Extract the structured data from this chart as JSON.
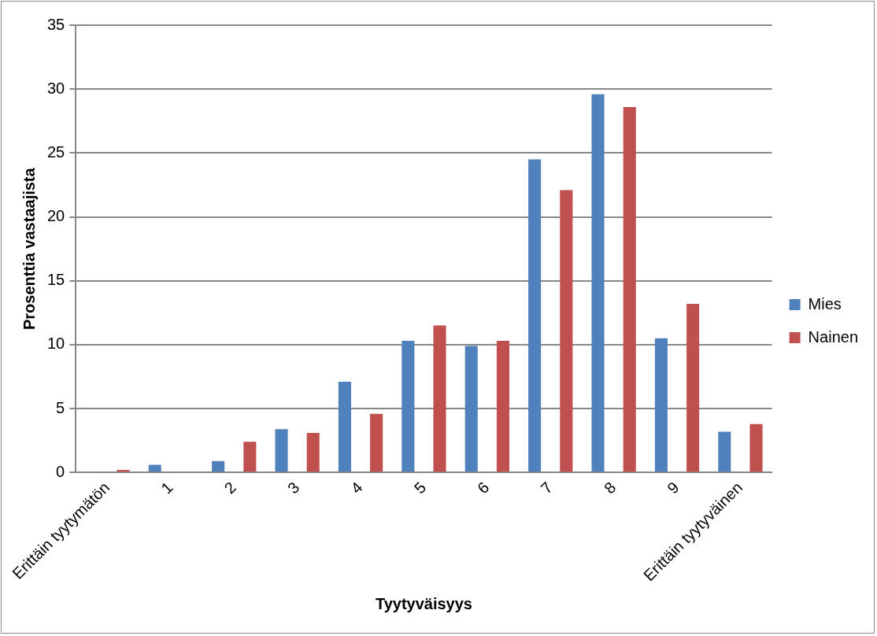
{
  "chart_data": {
    "type": "bar",
    "xlabel": "Tyytyväisyys",
    "ylabel": "Prosenttia vastaajista",
    "categories": [
      "Erittäin tyytymätön",
      "1",
      "2",
      "3",
      "4",
      "5",
      "6",
      "7",
      "8",
      "9",
      "Erittäin tyytyväinen"
    ],
    "series": [
      {
        "name": "Mies",
        "color": "#4f81bd",
        "values": [
          0,
          0.6,
          0.9,
          3.4,
          7.1,
          10.3,
          9.9,
          24.5,
          29.6,
          10.5,
          3.2
        ]
      },
      {
        "name": "Nainen",
        "color": "#c0504d",
        "values": [
          0.2,
          0,
          2.4,
          3.1,
          4.6,
          11.5,
          10.3,
          22.1,
          28.6,
          13.2,
          3.8
        ]
      }
    ],
    "ylim": [
      0,
      35
    ],
    "yticks": [
      0,
      5,
      10,
      15,
      20,
      25,
      30,
      35
    ],
    "grid": "y",
    "legend": "right"
  }
}
